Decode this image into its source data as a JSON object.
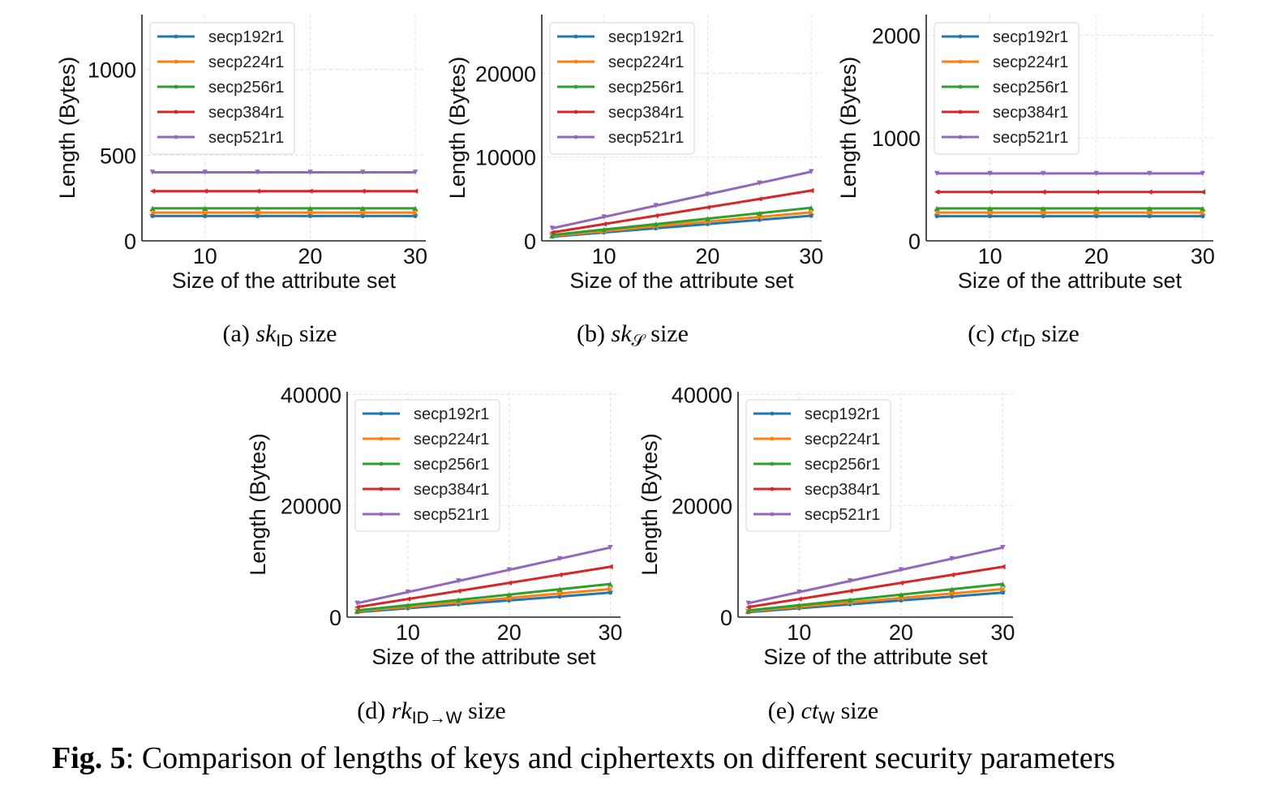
{
  "figure_caption": {
    "label": "Fig. 5",
    "text": ": Comparison of lengths of keys and ciphertexts on different security parameters"
  },
  "colors": {
    "secp192r1": "#1f77b4",
    "secp224r1": "#ff7f0e",
    "secp256r1": "#2ca02c",
    "secp384r1": "#d62728",
    "secp521r1": "#9467bd"
  },
  "chart_data": [
    {
      "id": "a",
      "type": "line",
      "caption": {
        "prefix": "(a)",
        "math": "sk",
        "subscript": "ID",
        "suffix": "size"
      },
      "xlabel": "Size of the attribute set",
      "ylabel": "Length (Bytes)",
      "xlim": [
        4,
        31
      ],
      "ylim": [
        0,
        1320
      ],
      "xticks": [
        10,
        20,
        30
      ],
      "yticks": [
        0,
        500,
        1000
      ],
      "grid": true,
      "legend": "top-left",
      "x": [
        5,
        10,
        15,
        20,
        25,
        30
      ],
      "series": [
        {
          "name": "secp192r1",
          "values": [
            145,
            145,
            145,
            145,
            145,
            145
          ]
        },
        {
          "name": "secp224r1",
          "values": [
            165,
            165,
            165,
            165,
            165,
            165
          ]
        },
        {
          "name": "secp256r1",
          "values": [
            190,
            190,
            190,
            190,
            190,
            190
          ]
        },
        {
          "name": "secp384r1",
          "values": [
            290,
            290,
            290,
            290,
            290,
            290
          ]
        },
        {
          "name": "secp521r1",
          "values": [
            400,
            400,
            400,
            400,
            400,
            400
          ]
        }
      ]
    },
    {
      "id": "b",
      "type": "line",
      "caption": {
        "prefix": "(b)",
        "math": "sk",
        "subscript": "𝒮",
        "suffix": "size"
      },
      "xlabel": "Size of the attribute set",
      "ylabel": "Length (Bytes)",
      "xlim": [
        4,
        31
      ],
      "ylim": [
        0,
        27000
      ],
      "xticks": [
        10,
        20,
        30
      ],
      "yticks": [
        0,
        10000,
        20000
      ],
      "grid": true,
      "legend": "top-left",
      "x": [
        5,
        10,
        15,
        20,
        25,
        30
      ],
      "series": [
        {
          "name": "secp192r1",
          "values": [
            500,
            1000,
            1500,
            2000,
            2500,
            3000
          ]
        },
        {
          "name": "secp224r1",
          "values": [
            600,
            1150,
            1750,
            2300,
            2850,
            3400
          ]
        },
        {
          "name": "secp256r1",
          "values": [
            700,
            1350,
            2000,
            2650,
            3300,
            3950
          ]
        },
        {
          "name": "secp384r1",
          "values": [
            1000,
            2000,
            3000,
            4000,
            5000,
            6000
          ]
        },
        {
          "name": "secp521r1",
          "values": [
            1500,
            2850,
            4200,
            5550,
            6900,
            8250
          ]
        }
      ]
    },
    {
      "id": "c",
      "type": "line",
      "caption": {
        "prefix": "(c)",
        "math": "ct",
        "subscript": "ID",
        "suffix": "size"
      },
      "xlabel": "Size of the attribute set",
      "ylabel": "Length (Bytes)",
      "xlim": [
        4,
        31
      ],
      "ylim": [
        0,
        2200
      ],
      "xticks": [
        10,
        20,
        30
      ],
      "yticks": [
        0,
        1000,
        2000
      ],
      "grid": true,
      "legend": "top-left",
      "x": [
        5,
        10,
        15,
        20,
        25,
        30
      ],
      "series": [
        {
          "name": "secp192r1",
          "values": [
            240,
            240,
            240,
            240,
            240,
            240
          ]
        },
        {
          "name": "secp224r1",
          "values": [
            275,
            275,
            275,
            275,
            275,
            275
          ]
        },
        {
          "name": "secp256r1",
          "values": [
            315,
            315,
            315,
            315,
            315,
            315
          ]
        },
        {
          "name": "secp384r1",
          "values": [
            475,
            475,
            475,
            475,
            475,
            475
          ]
        },
        {
          "name": "secp521r1",
          "values": [
            655,
            655,
            655,
            655,
            655,
            655
          ]
        }
      ]
    },
    {
      "id": "d",
      "type": "line",
      "caption": {
        "prefix": "(d)",
        "math": "rk",
        "subscript": "ID→W",
        "suffix": "size"
      },
      "xlabel": "Size of the attribute set",
      "ylabel": "Length (Bytes)",
      "xlim": [
        4,
        31
      ],
      "ylim": [
        0,
        40500
      ],
      "xticks": [
        10,
        20,
        30
      ],
      "yticks": [
        0,
        20000,
        40000
      ],
      "grid": true,
      "legend": "top-left",
      "x": [
        5,
        10,
        15,
        20,
        25,
        30
      ],
      "series": [
        {
          "name": "secp192r1",
          "values": [
            900,
            1600,
            2300,
            3000,
            3700,
            4400
          ]
        },
        {
          "name": "secp224r1",
          "values": [
            1050,
            1850,
            2650,
            3450,
            4250,
            5050
          ]
        },
        {
          "name": "secp256r1",
          "values": [
            1200,
            2150,
            3100,
            4050,
            5000,
            5950
          ]
        },
        {
          "name": "secp384r1",
          "values": [
            1800,
            3250,
            4700,
            6150,
            7600,
            9050
          ]
        },
        {
          "name": "secp521r1",
          "values": [
            2500,
            4500,
            6500,
            8500,
            10500,
            12500
          ]
        }
      ]
    },
    {
      "id": "e",
      "type": "line",
      "caption": {
        "prefix": "(e)",
        "math": "ct",
        "subscript": "W",
        "suffix": "size"
      },
      "xlabel": "Size of the attribute set",
      "ylabel": "Length (Bytes)",
      "xlim": [
        4,
        31
      ],
      "ylim": [
        0,
        40500
      ],
      "xticks": [
        10,
        20,
        30
      ],
      "yticks": [
        0,
        20000,
        40000
      ],
      "grid": true,
      "legend": "top-left",
      "x": [
        5,
        10,
        15,
        20,
        25,
        30
      ],
      "series": [
        {
          "name": "secp192r1",
          "values": [
            900,
            1600,
            2300,
            3000,
            3700,
            4400
          ]
        },
        {
          "name": "secp224r1",
          "values": [
            1050,
            1850,
            2650,
            3450,
            4250,
            5050
          ]
        },
        {
          "name": "secp256r1",
          "values": [
            1200,
            2150,
            3100,
            4050,
            5000,
            5950
          ]
        },
        {
          "name": "secp384r1",
          "values": [
            1800,
            3250,
            4700,
            6150,
            7600,
            9050
          ]
        },
        {
          "name": "secp521r1",
          "values": [
            2500,
            4500,
            6500,
            8500,
            10500,
            12500
          ]
        }
      ]
    }
  ]
}
